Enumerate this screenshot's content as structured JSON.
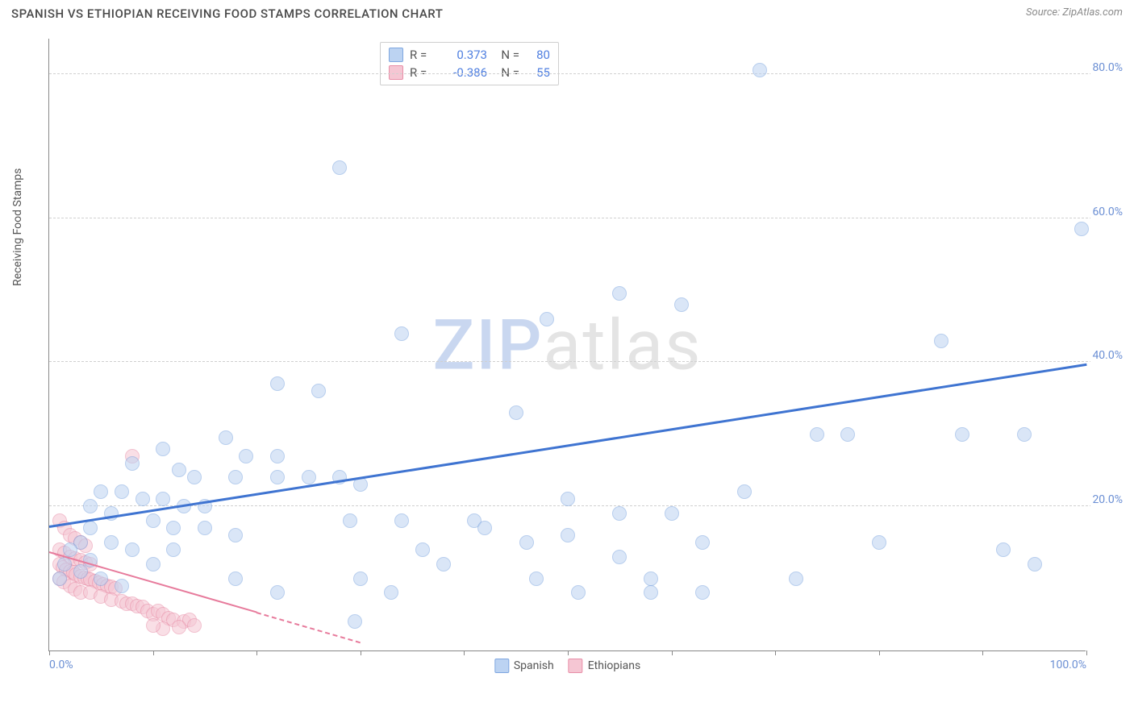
{
  "header": {
    "title": "SPANISH VS ETHIOPIAN RECEIVING FOOD STAMPS CORRELATION CHART",
    "source": "Source: ZipAtlas.com"
  },
  "chart": {
    "type": "scatter",
    "y_axis_label": "Receiving Food Stamps",
    "xlim": [
      0,
      100
    ],
    "ylim": [
      0,
      85
    ],
    "x_ticks": [
      0,
      10,
      20,
      30,
      40,
      50,
      60,
      70,
      80,
      90,
      100
    ],
    "x_tick_labels": {
      "0": "0.0%",
      "100": "100.0%"
    },
    "y_gridlines": [
      20,
      40,
      60,
      80
    ],
    "y_tick_labels": {
      "20": "20.0%",
      "40": "40.0%",
      "60": "60.0%",
      "80": "80.0%"
    },
    "background_color": "#ffffff",
    "grid_color": "#d8d8d8",
    "grid_dash": "4,4",
    "axis_color": "#888888",
    "tick_label_color": "#6b8fd4",
    "tick_label_fontsize": 14,
    "axis_label_color": "#555555",
    "axis_label_fontsize": 14,
    "watermark": {
      "text_a": "ZIP",
      "text_b": "atlas",
      "color_a": "#c9d7f0",
      "color_b": "#e4e4e4",
      "fontsize": 86
    }
  },
  "series": {
    "spanish": {
      "label": "Spanish",
      "fill_color": "#bcd3f2",
      "stroke_color": "#7fa7e0",
      "fill_opacity": 0.55,
      "marker_radius": 9,
      "trend": {
        "x1": 0,
        "y1": 17,
        "x2": 100,
        "y2": 39.5,
        "color": "#3f74d1",
        "width": 3,
        "dash_tail": false
      },
      "r_value": "0.373",
      "n_value": "80",
      "points": [
        [
          28,
          67
        ],
        [
          68.5,
          80.5
        ],
        [
          99.5,
          58.5
        ],
        [
          55,
          49.5
        ],
        [
          61,
          48
        ],
        [
          86,
          43
        ],
        [
          48,
          46
        ],
        [
          34,
          44
        ],
        [
          74,
          30
        ],
        [
          77,
          30
        ],
        [
          94,
          30
        ],
        [
          22,
          37
        ],
        [
          26,
          36
        ],
        [
          67,
          22
        ],
        [
          11,
          28
        ],
        [
          17,
          29.5
        ],
        [
          19,
          27
        ],
        [
          22,
          27
        ],
        [
          12.5,
          25
        ],
        [
          14,
          24
        ],
        [
          18,
          24
        ],
        [
          22,
          24
        ],
        [
          25,
          24
        ],
        [
          28,
          24
        ],
        [
          30,
          23
        ],
        [
          5,
          22
        ],
        [
          7,
          22
        ],
        [
          9,
          21
        ],
        [
          11,
          21
        ],
        [
          13,
          20
        ],
        [
          15,
          20
        ],
        [
          4,
          20
        ],
        [
          29,
          18
        ],
        [
          34,
          18
        ],
        [
          41,
          18
        ],
        [
          45,
          33
        ],
        [
          50,
          21
        ],
        [
          55,
          19
        ],
        [
          42,
          17
        ],
        [
          46,
          15
        ],
        [
          50,
          16
        ],
        [
          55,
          13
        ],
        [
          60,
          19
        ],
        [
          63,
          15
        ],
        [
          58,
          10
        ],
        [
          36,
          14
        ],
        [
          38,
          12
        ],
        [
          30,
          10
        ],
        [
          33,
          8
        ],
        [
          29.5,
          4
        ],
        [
          22,
          8
        ],
        [
          18,
          10
        ],
        [
          12,
          14
        ],
        [
          10,
          12
        ],
        [
          8,
          14
        ],
        [
          6,
          15
        ],
        [
          4,
          17
        ],
        [
          3,
          15
        ],
        [
          2,
          14
        ],
        [
          1.5,
          12
        ],
        [
          1,
          10
        ],
        [
          47,
          10
        ],
        [
          51,
          8
        ],
        [
          58,
          8
        ],
        [
          63,
          8
        ],
        [
          72,
          10
        ],
        [
          80,
          15
        ],
        [
          92,
          14
        ],
        [
          95,
          12
        ],
        [
          88,
          30
        ],
        [
          8,
          26
        ],
        [
          6,
          19
        ],
        [
          10,
          18
        ],
        [
          12,
          17
        ],
        [
          15,
          17
        ],
        [
          18,
          16
        ],
        [
          4,
          12.5
        ],
        [
          3,
          11
        ],
        [
          5,
          10
        ],
        [
          7,
          9
        ]
      ]
    },
    "ethiopians": {
      "label": "Ethiopians",
      "fill_color": "#f5c6d3",
      "stroke_color": "#e88fa8",
      "fill_opacity": 0.55,
      "marker_radius": 9,
      "trend": {
        "x1": 0,
        "y1": 13.5,
        "x2": 30,
        "y2": 1,
        "color": "#e77b9c",
        "width": 2.5,
        "dash_tail": true,
        "dash_start_x": 20
      },
      "r_value": "-0.386",
      "n_value": "55",
      "points": [
        [
          8,
          27
        ],
        [
          1,
          18
        ],
        [
          1.5,
          17
        ],
        [
          2,
          16
        ],
        [
          2.5,
          15.5
        ],
        [
          3,
          15
        ],
        [
          3.5,
          14.5
        ],
        [
          1,
          14
        ],
        [
          1.5,
          13.5
        ],
        [
          2,
          13
        ],
        [
          2.5,
          12.7
        ],
        [
          3,
          12.5
        ],
        [
          3.5,
          12.2
        ],
        [
          4,
          12
        ],
        [
          1,
          12
        ],
        [
          1.3,
          11.5
        ],
        [
          1.6,
          11.2
        ],
        [
          2,
          11
        ],
        [
          2.3,
          10.8
        ],
        [
          2.6,
          10.5
        ],
        [
          3,
          10.3
        ],
        [
          3.4,
          10.1
        ],
        [
          3.7,
          10
        ],
        [
          4,
          9.8
        ],
        [
          4.4,
          9.6
        ],
        [
          4.8,
          9.4
        ],
        [
          5.2,
          9.2
        ],
        [
          5.6,
          9
        ],
        [
          6,
          8.8
        ],
        [
          6.4,
          8.6
        ],
        [
          1,
          10
        ],
        [
          1.4,
          9.5
        ],
        [
          2,
          9
        ],
        [
          2.5,
          8.5
        ],
        [
          3,
          8
        ],
        [
          4,
          8
        ],
        [
          5,
          7.5
        ],
        [
          6,
          7
        ],
        [
          7,
          6.8
        ],
        [
          7.5,
          6.5
        ],
        [
          8,
          6.5
        ],
        [
          8.5,
          6.2
        ],
        [
          9,
          6
        ],
        [
          9.5,
          5.5
        ],
        [
          10,
          5
        ],
        [
          10.5,
          5.5
        ],
        [
          11,
          5
        ],
        [
          11.5,
          4.5
        ],
        [
          12,
          4.3
        ],
        [
          13,
          4
        ],
        [
          13.5,
          4.2
        ],
        [
          14,
          3.5
        ],
        [
          12.5,
          3.2
        ],
        [
          11,
          3
        ],
        [
          10,
          3.5
        ]
      ]
    }
  },
  "legend_top": {
    "border_color": "#cfcfcf",
    "rows": [
      {
        "swatch_fill": "#bcd3f2",
        "swatch_stroke": "#7fa7e0",
        "r": "0.373",
        "n": "80"
      },
      {
        "swatch_fill": "#f5c6d3",
        "swatch_stroke": "#e88fa8",
        "r": "-0.386",
        "n": "55"
      }
    ],
    "r_label": "R =",
    "n_label": "N =",
    "value_color": "#4f7fe0",
    "label_color": "#555555"
  },
  "legend_bottom": {
    "items": [
      {
        "swatch_fill": "#bcd3f2",
        "swatch_stroke": "#7fa7e0",
        "label": "Spanish"
      },
      {
        "swatch_fill": "#f5c6d3",
        "swatch_stroke": "#e88fa8",
        "label": "Ethiopians"
      }
    ]
  }
}
